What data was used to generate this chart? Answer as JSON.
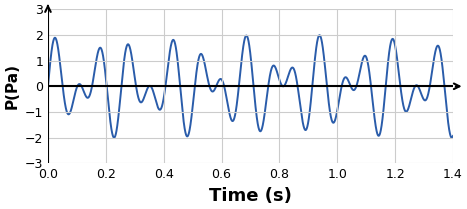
{
  "title": "",
  "xlabel": "Time (s)",
  "ylabel": "P(Pa)",
  "xlim": [
    0,
    1.4
  ],
  "ylim": [
    -3,
    3
  ],
  "xticks": [
    0,
    0.2,
    0.4,
    0.6,
    0.8,
    1.0,
    1.2,
    1.4
  ],
  "yticks": [
    -3,
    -2,
    -1,
    0,
    1,
    2,
    3
  ],
  "line_color": "#2a5caa",
  "line_width": 1.4,
  "freq1": 12.0,
  "freq2": 7.7,
  "amplitude": 2.0,
  "beat_freq": 2.2,
  "background_color": "#ffffff",
  "grid_color": "#cccccc",
  "xlabel_fontsize": 13,
  "ylabel_fontsize": 11
}
